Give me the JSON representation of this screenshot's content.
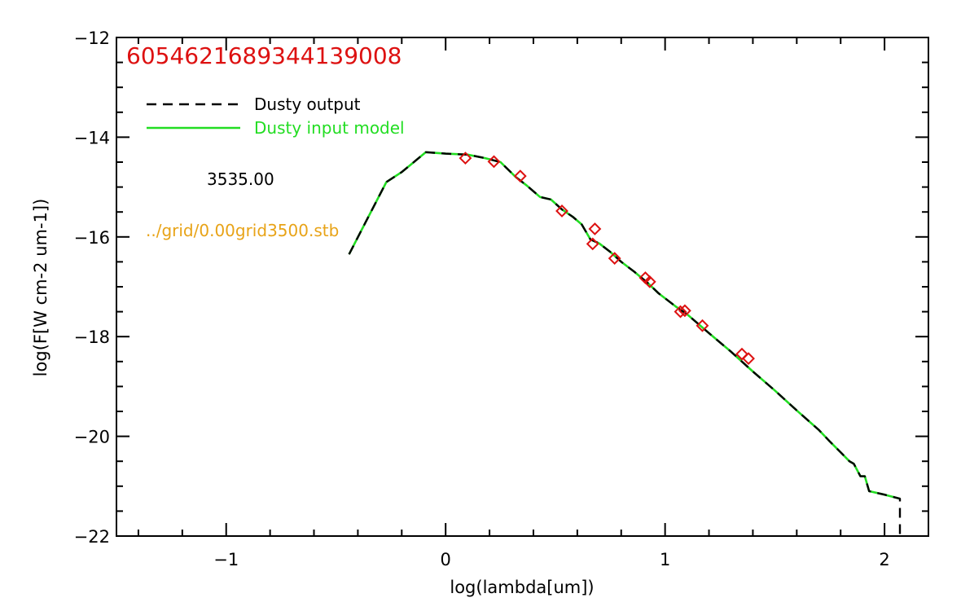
{
  "chart_data": {
    "type": "line",
    "title": "60546216893441390​08",
    "xlabel": "log(lambda[um])",
    "ylabel": "log(F[W cm-2 um-1])",
    "xlim": [
      -1.5,
      2.2
    ],
    "ylim": [
      -22,
      -12
    ],
    "x_ticks": [
      -1,
      0,
      1,
      2
    ],
    "x_tick_labels": [
      "−1",
      "0",
      "1",
      "2"
    ],
    "y_ticks": [
      -22,
      -20,
      -18,
      -16,
      -14,
      -12
    ],
    "y_tick_labels": [
      "−22",
      "−20",
      "−18",
      "−16",
      "−14",
      "−12"
    ],
    "grid": false,
    "legend_position": "top-left",
    "series": [
      {
        "name": "Dusty output",
        "style": "dashed",
        "color": "#000000",
        "points": [
          [
            -0.44,
            -16.35
          ],
          [
            -0.37,
            -15.75
          ],
          [
            -0.27,
            -14.9
          ],
          [
            -0.2,
            -14.7
          ],
          [
            -0.09,
            -14.3
          ],
          [
            0.0,
            -14.33
          ],
          [
            0.1,
            -14.35
          ],
          [
            0.18,
            -14.42
          ],
          [
            0.25,
            -14.5
          ],
          [
            0.32,
            -14.8
          ],
          [
            0.37,
            -14.97
          ],
          [
            0.43,
            -15.2
          ],
          [
            0.48,
            -15.25
          ],
          [
            0.53,
            -15.45
          ],
          [
            0.58,
            -15.6
          ],
          [
            0.62,
            -15.75
          ],
          [
            0.66,
            -16.05
          ],
          [
            0.7,
            -16.13
          ],
          [
            0.75,
            -16.3
          ],
          [
            0.8,
            -16.5
          ],
          [
            0.86,
            -16.7
          ],
          [
            0.92,
            -16.92
          ],
          [
            0.97,
            -17.13
          ],
          [
            1.05,
            -17.4
          ],
          [
            1.1,
            -17.55
          ],
          [
            1.2,
            -17.93
          ],
          [
            1.3,
            -18.3
          ],
          [
            1.4,
            -18.7
          ],
          [
            1.5,
            -19.08
          ],
          [
            1.6,
            -19.48
          ],
          [
            1.7,
            -19.87
          ],
          [
            1.75,
            -20.1
          ],
          [
            1.8,
            -20.32
          ],
          [
            1.84,
            -20.5
          ],
          [
            1.86,
            -20.55
          ],
          [
            1.89,
            -20.8
          ],
          [
            1.91,
            -20.8
          ],
          [
            1.93,
            -21.1
          ],
          [
            2.0,
            -21.17
          ],
          [
            2.07,
            -21.25
          ],
          [
            2.07,
            -21.55
          ],
          [
            2.07,
            -22.0
          ]
        ]
      },
      {
        "name": "Dusty input model",
        "style": "solid",
        "color": "#22dd22",
        "points": [
          [
            -0.44,
            -16.35
          ],
          [
            -0.37,
            -15.75
          ],
          [
            -0.27,
            -14.9
          ],
          [
            -0.2,
            -14.7
          ],
          [
            -0.09,
            -14.3
          ],
          [
            0.0,
            -14.33
          ],
          [
            0.1,
            -14.35
          ],
          [
            0.18,
            -14.42
          ],
          [
            0.25,
            -14.5
          ],
          [
            0.32,
            -14.8
          ],
          [
            0.37,
            -14.97
          ],
          [
            0.43,
            -15.2
          ],
          [
            0.48,
            -15.25
          ],
          [
            0.53,
            -15.45
          ],
          [
            0.58,
            -15.6
          ],
          [
            0.62,
            -15.75
          ],
          [
            0.66,
            -16.05
          ],
          [
            0.7,
            -16.13
          ],
          [
            0.75,
            -16.3
          ],
          [
            0.8,
            -16.5
          ],
          [
            0.86,
            -16.7
          ],
          [
            0.92,
            -16.92
          ],
          [
            0.97,
            -17.13
          ],
          [
            1.05,
            -17.4
          ],
          [
            1.1,
            -17.55
          ],
          [
            1.2,
            -17.93
          ],
          [
            1.3,
            -18.3
          ],
          [
            1.4,
            -18.7
          ],
          [
            1.5,
            -19.08
          ],
          [
            1.6,
            -19.48
          ],
          [
            1.7,
            -19.87
          ],
          [
            1.75,
            -20.1
          ],
          [
            1.8,
            -20.32
          ],
          [
            1.84,
            -20.5
          ],
          [
            1.86,
            -20.55
          ],
          [
            1.89,
            -20.8
          ],
          [
            1.91,
            -20.8
          ],
          [
            1.93,
            -21.1
          ],
          [
            2.0,
            -21.17
          ],
          [
            2.07,
            -21.25
          ]
        ]
      }
    ],
    "markers": {
      "shape": "diamond",
      "color": "#dd1111",
      "points": [
        [
          0.09,
          -14.42
        ],
        [
          0.22,
          -14.49
        ],
        [
          0.34,
          -14.78
        ],
        [
          0.53,
          -15.48
        ],
        [
          0.68,
          -15.84
        ],
        [
          0.67,
          -16.14
        ],
        [
          0.77,
          -16.43
        ],
        [
          0.91,
          -16.82
        ],
        [
          0.93,
          -16.9
        ],
        [
          1.07,
          -17.5
        ],
        [
          1.09,
          -17.48
        ],
        [
          1.17,
          -17.78
        ],
        [
          1.35,
          -18.35
        ],
        [
          1.38,
          -18.44
        ]
      ]
    },
    "annotations": [
      {
        "text": "3535.00",
        "color": "#000000"
      },
      {
        "text": "../grid/0.00grid3500.stb",
        "color": "#e8a317"
      }
    ],
    "title_color": "#dd1111"
  }
}
